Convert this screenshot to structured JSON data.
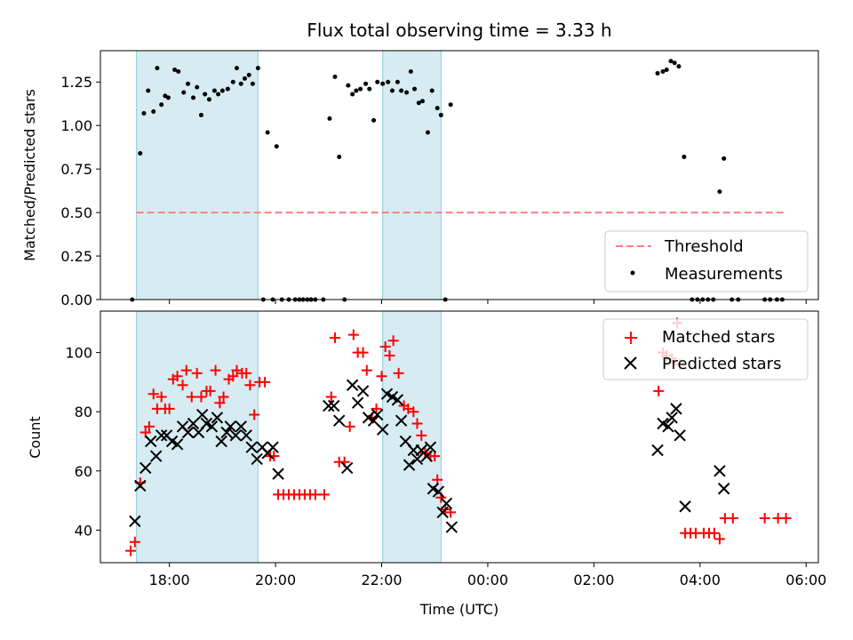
{
  "chart_data": [
    {
      "type": "scatter",
      "title": "Flux total observing time = 3.33 h",
      "ylabel": "Matched/Predicted stars",
      "xlim": [
        16.7,
        30.23
      ],
      "ylim": [
        0,
        1.43
      ],
      "x_ticks": [
        {
          "value": 18,
          "label": "18:00"
        },
        {
          "value": 20,
          "label": "20:00"
        },
        {
          "value": 22,
          "label": "22:00"
        },
        {
          "value": 24,
          "label": "00:00"
        },
        {
          "value": 26,
          "label": "02:00"
        },
        {
          "value": 28,
          "label": "04:00"
        },
        {
          "value": 30,
          "label": "06:00"
        }
      ],
      "y_ticks": [
        {
          "value": 0,
          "label": "0.00"
        },
        {
          "value": 0.25,
          "label": "0.25"
        },
        {
          "value": 0.5,
          "label": "0.50"
        },
        {
          "value": 0.75,
          "label": "0.75"
        },
        {
          "value": 1.0,
          "label": "1.00"
        },
        {
          "value": 1.25,
          "label": "1.25"
        }
      ],
      "shaded_intervals": [
        [
          17.38,
          19.67
        ],
        [
          22.02,
          23.12
        ]
      ],
      "threshold": {
        "name": "Threshold",
        "y": 0.5,
        "x_range": [
          17.38,
          29.62
        ],
        "color": "#ff7f7f"
      },
      "series": [
        {
          "name": "Measurements",
          "marker": "dot",
          "color": "#000000",
          "points": [
            [
              17.3,
              0
            ],
            [
              17.45,
              0.84
            ],
            [
              17.52,
              1.07
            ],
            [
              17.6,
              1.2
            ],
            [
              17.7,
              1.08
            ],
            [
              17.77,
              1.33
            ],
            [
              17.85,
              1.12
            ],
            [
              17.92,
              1.17
            ],
            [
              17.98,
              1.16
            ],
            [
              18.1,
              1.32
            ],
            [
              18.17,
              1.31
            ],
            [
              18.27,
              1.19
            ],
            [
              18.35,
              1.24
            ],
            [
              18.45,
              1.16
            ],
            [
              18.52,
              1.22
            ],
            [
              18.6,
              1.06
            ],
            [
              18.67,
              1.18
            ],
            [
              18.75,
              1.15
            ],
            [
              18.85,
              1.2
            ],
            [
              18.92,
              1.18
            ],
            [
              19.0,
              1.2
            ],
            [
              19.1,
              1.21
            ],
            [
              19.2,
              1.25
            ],
            [
              19.27,
              1.33
            ],
            [
              19.35,
              1.24
            ],
            [
              19.42,
              1.27
            ],
            [
              19.5,
              1.29
            ],
            [
              19.57,
              1.24
            ],
            [
              19.67,
              1.33
            ],
            [
              19.77,
              0
            ],
            [
              19.85,
              0.96
            ],
            [
              19.95,
              0
            ],
            [
              20.02,
              0.88
            ],
            [
              20.12,
              0
            ],
            [
              20.25,
              0
            ],
            [
              20.37,
              0
            ],
            [
              20.45,
              0
            ],
            [
              20.52,
              0
            ],
            [
              20.6,
              0
            ],
            [
              20.67,
              0
            ],
            [
              20.75,
              0
            ],
            [
              20.9,
              0
            ],
            [
              21.02,
              1.04
            ],
            [
              21.12,
              1.28
            ],
            [
              21.2,
              0.82
            ],
            [
              21.3,
              0
            ],
            [
              21.37,
              1.23
            ],
            [
              21.45,
              1.18
            ],
            [
              21.52,
              1.2
            ],
            [
              21.6,
              1.21
            ],
            [
              21.7,
              1.24
            ],
            [
              21.77,
              1.21
            ],
            [
              21.85,
              1.03
            ],
            [
              21.92,
              1.25
            ],
            [
              22.02,
              1.24
            ],
            [
              22.12,
              1.25
            ],
            [
              22.2,
              1.2
            ],
            [
              22.3,
              1.25
            ],
            [
              22.37,
              1.2
            ],
            [
              22.47,
              1.19
            ],
            [
              22.55,
              1.31
            ],
            [
              22.62,
              1.21
            ],
            [
              22.7,
              1.13
            ],
            [
              22.77,
              1.14
            ],
            [
              22.87,
              0.96
            ],
            [
              22.95,
              1.2
            ],
            [
              23.05,
              1.1
            ],
            [
              23.12,
              1.06
            ],
            [
              23.2,
              0
            ],
            [
              23.3,
              1.12
            ],
            [
              27.2,
              1.3
            ],
            [
              27.3,
              1.31
            ],
            [
              27.37,
              1.32
            ],
            [
              27.45,
              1.37
            ],
            [
              27.52,
              1.36
            ],
            [
              27.6,
              1.34
            ],
            [
              27.7,
              0.82
            ],
            [
              27.85,
              0
            ],
            [
              27.95,
              0
            ],
            [
              28.05,
              0
            ],
            [
              28.15,
              0
            ],
            [
              28.25,
              0
            ],
            [
              28.37,
              0.62
            ],
            [
              28.45,
              0.81
            ],
            [
              28.6,
              0
            ],
            [
              28.72,
              0
            ],
            [
              29.22,
              0
            ],
            [
              29.32,
              0
            ],
            [
              29.45,
              0
            ],
            [
              29.55,
              0
            ]
          ]
        }
      ],
      "legend": {
        "position": "lower-right",
        "entries": [
          "Threshold",
          "Measurements"
        ]
      }
    },
    {
      "type": "scatter",
      "xlabel": "Time (UTC)",
      "ylabel": "Count",
      "xlim": [
        16.7,
        30.23
      ],
      "ylim": [
        29,
        114
      ],
      "x_ticks": [
        {
          "value": 18,
          "label": "18:00"
        },
        {
          "value": 20,
          "label": "20:00"
        },
        {
          "value": 22,
          "label": "22:00"
        },
        {
          "value": 24,
          "label": "00:00"
        },
        {
          "value": 26,
          "label": "02:00"
        },
        {
          "value": 28,
          "label": "04:00"
        },
        {
          "value": 30,
          "label": "06:00"
        }
      ],
      "y_ticks": [
        {
          "value": 40,
          "label": "40"
        },
        {
          "value": 60,
          "label": "60"
        },
        {
          "value": 80,
          "label": "80"
        },
        {
          "value": 100,
          "label": "100"
        }
      ],
      "shaded_intervals": [
        [
          17.38,
          19.67
        ],
        [
          22.02,
          23.12
        ]
      ],
      "series": [
        {
          "name": "Matched stars",
          "marker": "plus",
          "color": "#ff0000",
          "points": [
            [
              17.27,
              33
            ],
            [
              17.35,
              36
            ],
            [
              17.45,
              56
            ],
            [
              17.55,
              73
            ],
            [
              17.62,
              75
            ],
            [
              17.7,
              86
            ],
            [
              17.77,
              81
            ],
            [
              17.85,
              85
            ],
            [
              17.92,
              81
            ],
            [
              18.0,
              81
            ],
            [
              18.07,
              91
            ],
            [
              18.15,
              92
            ],
            [
              18.25,
              89
            ],
            [
              18.32,
              94
            ],
            [
              18.42,
              85
            ],
            [
              18.52,
              93
            ],
            [
              18.6,
              85
            ],
            [
              18.7,
              87
            ],
            [
              18.77,
              87
            ],
            [
              18.87,
              94
            ],
            [
              18.95,
              83
            ],
            [
              19.02,
              85
            ],
            [
              19.12,
              91
            ],
            [
              19.2,
              92
            ],
            [
              19.27,
              94
            ],
            [
              19.37,
              93
            ],
            [
              19.45,
              93
            ],
            [
              19.52,
              89
            ],
            [
              19.6,
              79
            ],
            [
              19.7,
              90
            ],
            [
              19.8,
              90
            ],
            [
              19.9,
              65
            ],
            [
              19.97,
              65
            ],
            [
              20.05,
              52
            ],
            [
              20.15,
              52
            ],
            [
              20.25,
              52
            ],
            [
              20.35,
              52
            ],
            [
              20.45,
              52
            ],
            [
              20.55,
              52
            ],
            [
              20.65,
              52
            ],
            [
              20.75,
              52
            ],
            [
              20.92,
              52
            ],
            [
              21.05,
              85
            ],
            [
              21.12,
              105
            ],
            [
              21.2,
              63
            ],
            [
              21.3,
              63
            ],
            [
              21.4,
              75
            ],
            [
              21.47,
              106
            ],
            [
              21.55,
              100
            ],
            [
              21.65,
              100
            ],
            [
              21.72,
              94
            ],
            [
              21.82,
              78
            ],
            [
              21.9,
              81
            ],
            [
              22.0,
              92
            ],
            [
              22.07,
              102
            ],
            [
              22.15,
              99
            ],
            [
              22.22,
              104
            ],
            [
              22.32,
              93
            ],
            [
              22.42,
              82
            ],
            [
              22.5,
              81
            ],
            [
              22.6,
              80
            ],
            [
              22.67,
              76
            ],
            [
              22.75,
              72
            ],
            [
              22.82,
              66
            ],
            [
              22.92,
              65
            ],
            [
              23.0,
              65
            ],
            [
              23.05,
              57
            ],
            [
              23.12,
              51
            ],
            [
              23.2,
              47
            ],
            [
              23.3,
              46
            ],
            [
              27.22,
              87
            ],
            [
              27.3,
              100
            ],
            [
              27.37,
              99
            ],
            [
              27.47,
              98
            ],
            [
              27.57,
              110
            ],
            [
              27.62,
              96
            ],
            [
              27.72,
              39
            ],
            [
              27.82,
              39
            ],
            [
              27.92,
              39
            ],
            [
              28.07,
              39
            ],
            [
              28.17,
              39
            ],
            [
              28.27,
              39
            ],
            [
              28.37,
              37
            ],
            [
              28.47,
              44
            ],
            [
              28.62,
              44
            ],
            [
              29.22,
              44
            ],
            [
              29.47,
              44
            ],
            [
              29.62,
              44
            ]
          ]
        },
        {
          "name": "Predicted stars",
          "marker": "x",
          "color": "#000000",
          "points": [
            [
              17.35,
              43
            ],
            [
              17.45,
              55
            ],
            [
              17.55,
              61
            ],
            [
              17.65,
              70
            ],
            [
              17.75,
              65
            ],
            [
              17.85,
              72
            ],
            [
              17.95,
              72
            ],
            [
              18.05,
              70
            ],
            [
              18.15,
              69
            ],
            [
              18.25,
              75
            ],
            [
              18.35,
              73
            ],
            [
              18.45,
              76
            ],
            [
              18.55,
              73
            ],
            [
              18.62,
              79
            ],
            [
              18.7,
              76
            ],
            [
              18.8,
              75
            ],
            [
              18.9,
              78
            ],
            [
              18.98,
              70
            ],
            [
              19.08,
              73
            ],
            [
              19.15,
              75
            ],
            [
              19.25,
              72
            ],
            [
              19.35,
              75
            ],
            [
              19.45,
              72
            ],
            [
              19.55,
              68
            ],
            [
              19.65,
              64
            ],
            [
              19.75,
              68
            ],
            [
              19.85,
              66
            ],
            [
              19.95,
              68
            ],
            [
              20.05,
              59
            ],
            [
              21.0,
              82
            ],
            [
              21.1,
              82
            ],
            [
              21.2,
              77
            ],
            [
              21.35,
              61
            ],
            [
              21.45,
              89
            ],
            [
              21.55,
              83
            ],
            [
              21.65,
              87
            ],
            [
              21.75,
              78
            ],
            [
              21.85,
              77
            ],
            [
              21.92,
              79
            ],
            [
              22.02,
              74
            ],
            [
              22.1,
              86
            ],
            [
              22.2,
              85
            ],
            [
              22.3,
              84
            ],
            [
              22.37,
              77
            ],
            [
              22.45,
              70
            ],
            [
              22.52,
              62
            ],
            [
              22.6,
              67
            ],
            [
              22.67,
              64
            ],
            [
              22.75,
              67
            ],
            [
              22.85,
              65
            ],
            [
              22.92,
              68
            ],
            [
              22.97,
              54
            ],
            [
              23.07,
              53
            ],
            [
              23.15,
              46
            ],
            [
              23.22,
              49
            ],
            [
              23.32,
              41
            ],
            [
              27.2,
              67
            ],
            [
              27.3,
              76
            ],
            [
              27.4,
              75
            ],
            [
              27.47,
              78
            ],
            [
              27.55,
              81
            ],
            [
              27.62,
              72
            ],
            [
              27.72,
              48
            ],
            [
              28.37,
              60
            ],
            [
              28.45,
              54
            ]
          ]
        }
      ],
      "legend": {
        "position": "upper-right",
        "entries": [
          "Matched stars",
          "Predicted stars"
        ]
      }
    }
  ]
}
